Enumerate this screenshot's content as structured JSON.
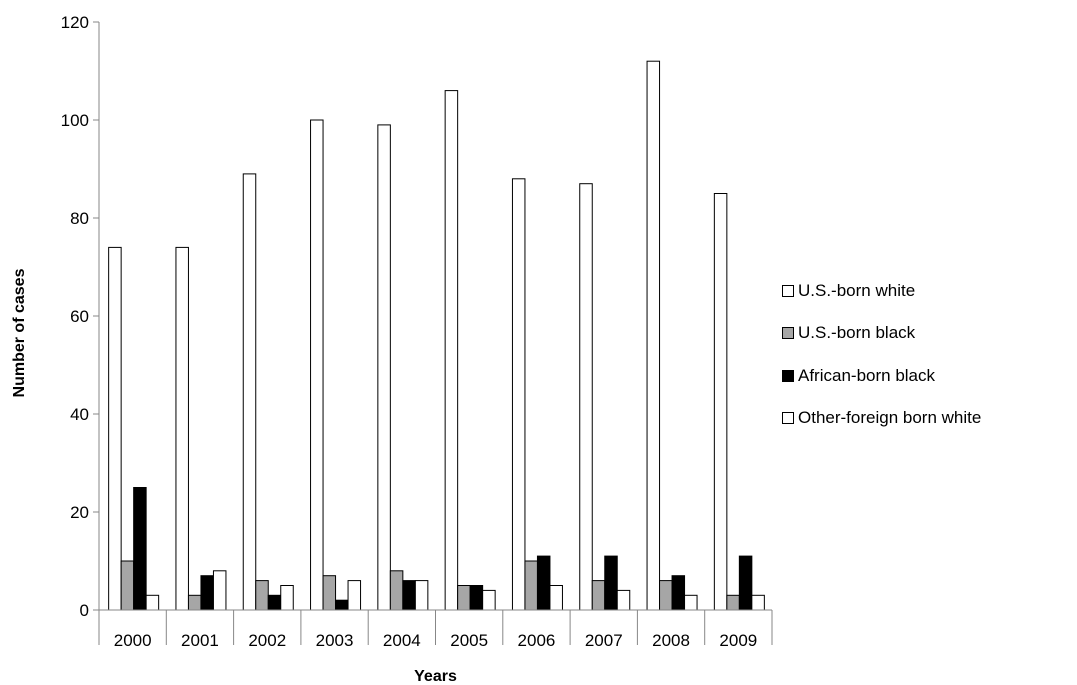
{
  "chart_data": {
    "type": "bar",
    "title": "",
    "xlabel": "Years",
    "ylabel": "Number of cases",
    "ylim": [
      0,
      120
    ],
    "yticks": [
      0,
      20,
      40,
      60,
      80,
      100,
      120
    ],
    "grid": false,
    "legend_position": "right",
    "categories": [
      "2000",
      "2001",
      "2002",
      "2003",
      "2004",
      "2005",
      "2006",
      "2007",
      "2008",
      "2009"
    ],
    "series": [
      {
        "name": "U.S.-born white",
        "color": "#ffffff",
        "values": [
          74,
          74,
          89,
          100,
          99,
          106,
          88,
          87,
          112,
          85
        ]
      },
      {
        "name": "U.S.-born black",
        "color": "#a6a6a6",
        "values": [
          10,
          3,
          6,
          7,
          8,
          5,
          10,
          6,
          6,
          3
        ]
      },
      {
        "name": "African-born black",
        "color": "#000000",
        "values": [
          25,
          7,
          3,
          2,
          6,
          5,
          11,
          11,
          7,
          11
        ]
      },
      {
        "name": "Other-foreign born white",
        "color": "#ffffff",
        "values": [
          3,
          8,
          5,
          6,
          6,
          4,
          5,
          4,
          3,
          3
        ]
      }
    ]
  }
}
